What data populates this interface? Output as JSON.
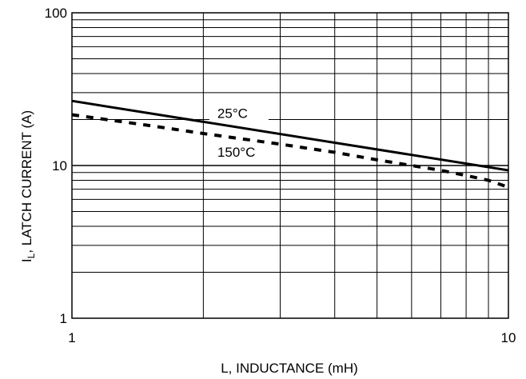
{
  "chart_data": {
    "type": "line",
    "xlabel": "L, INDUCTANCE (mH)",
    "ylabel_main": "I",
    "ylabel_sub": "L",
    "ylabel_rest": ", LATCH CURRENT (A)",
    "x_scale": "log",
    "y_scale": "log",
    "xlim": [
      1,
      10
    ],
    "ylim": [
      1,
      100
    ],
    "grid": true,
    "x_ticks": [
      {
        "value": 1,
        "label": "1"
      },
      {
        "value": 10,
        "label": "10"
      }
    ],
    "y_ticks": [
      {
        "value": 1,
        "label": "1"
      },
      {
        "value": 10,
        "label": "10"
      },
      {
        "value": 100,
        "label": "100"
      }
    ],
    "series": [
      {
        "name": "25°C",
        "style": "solid",
        "color": "#000000",
        "points": [
          [
            1,
            26.5
          ],
          [
            10,
            9.3
          ]
        ],
        "label_at": [
          2.1,
          20.5
        ]
      },
      {
        "name": "150°C",
        "style": "dashed",
        "color": "#000000",
        "points": [
          [
            1,
            21.5
          ],
          [
            1.5,
            18.3
          ],
          [
            2,
            16.2
          ],
          [
            3,
            13.8
          ],
          [
            4,
            12.2
          ],
          [
            5,
            10.9
          ],
          [
            6,
            10.0
          ],
          [
            7,
            9.3
          ],
          [
            8,
            8.6
          ],
          [
            9,
            8.0
          ],
          [
            10,
            7.2
          ]
        ],
        "label_at": [
          2.1,
          11.4
        ]
      }
    ]
  }
}
